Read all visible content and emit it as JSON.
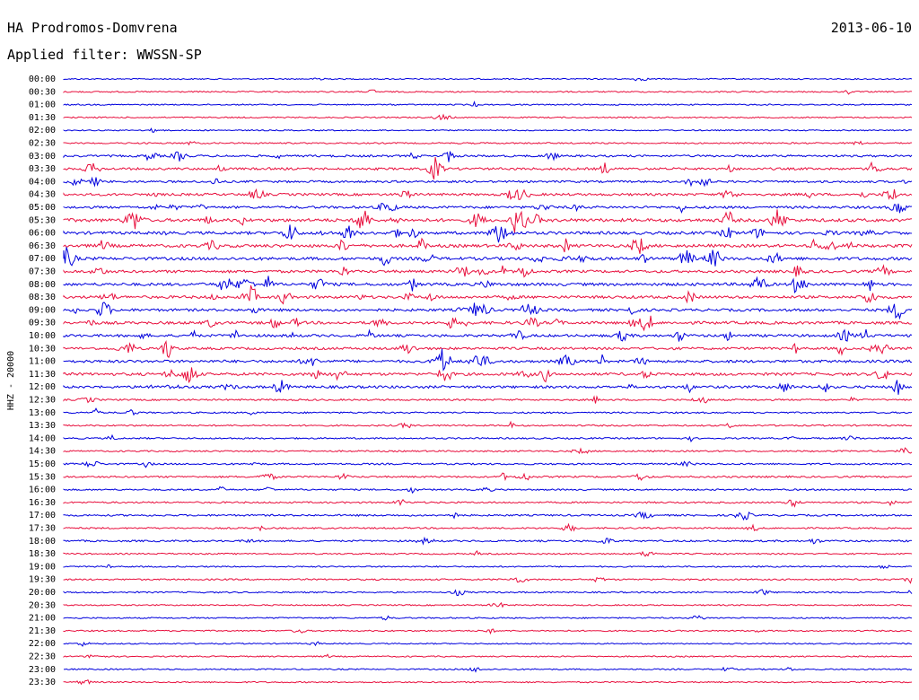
{
  "header": {
    "station": "HA Prodromos-Domvrena",
    "date": "2013-06-10",
    "filter": "Applied filter: WWSSN-SP"
  },
  "chart_data": {
    "type": "line",
    "title": "HA Prodromos-Domvrena",
    "subtitle": "Applied filter: WWSSN-SP",
    "date": "2013-06-10",
    "ylabel": "HHZ - 20000",
    "rows": [
      "00:00",
      "00:30",
      "01:00",
      "01:30",
      "02:00",
      "02:30",
      "03:00",
      "03:30",
      "04:00",
      "04:30",
      "05:00",
      "05:30",
      "06:00",
      "06:30",
      "07:00",
      "07:30",
      "08:00",
      "08:30",
      "09:00",
      "09:30",
      "10:00",
      "10:30",
      "11:00",
      "11:30",
      "12:00",
      "12:30",
      "13:00",
      "13:30",
      "14:00",
      "14:30",
      "15:00",
      "15:30",
      "16:00",
      "16:30",
      "17:00",
      "17:30",
      "18:00",
      "18:30",
      "19:00",
      "19:30",
      "20:00",
      "20:30",
      "21:00",
      "21:30",
      "22:00",
      "22:30",
      "23:00",
      "23:30"
    ],
    "series_colors": [
      "#0000dd",
      "#e8103e"
    ],
    "activity": [
      0.05,
      0.12,
      0.08,
      0.08,
      0.02,
      0.15,
      0.45,
      0.55,
      0.45,
      0.6,
      0.6,
      0.95,
      0.8,
      0.9,
      0.85,
      0.7,
      0.8,
      0.75,
      0.7,
      0.75,
      0.65,
      0.6,
      0.7,
      0.75,
      0.65,
      0.25,
      0.2,
      0.2,
      0.2,
      0.2,
      0.25,
      0.3,
      0.2,
      0.25,
      0.3,
      0.2,
      0.3,
      0.15,
      0.1,
      0.2,
      0.15,
      0.08,
      0.12,
      0.12,
      0.05,
      0.08,
      0.1,
      0.08
    ]
  }
}
